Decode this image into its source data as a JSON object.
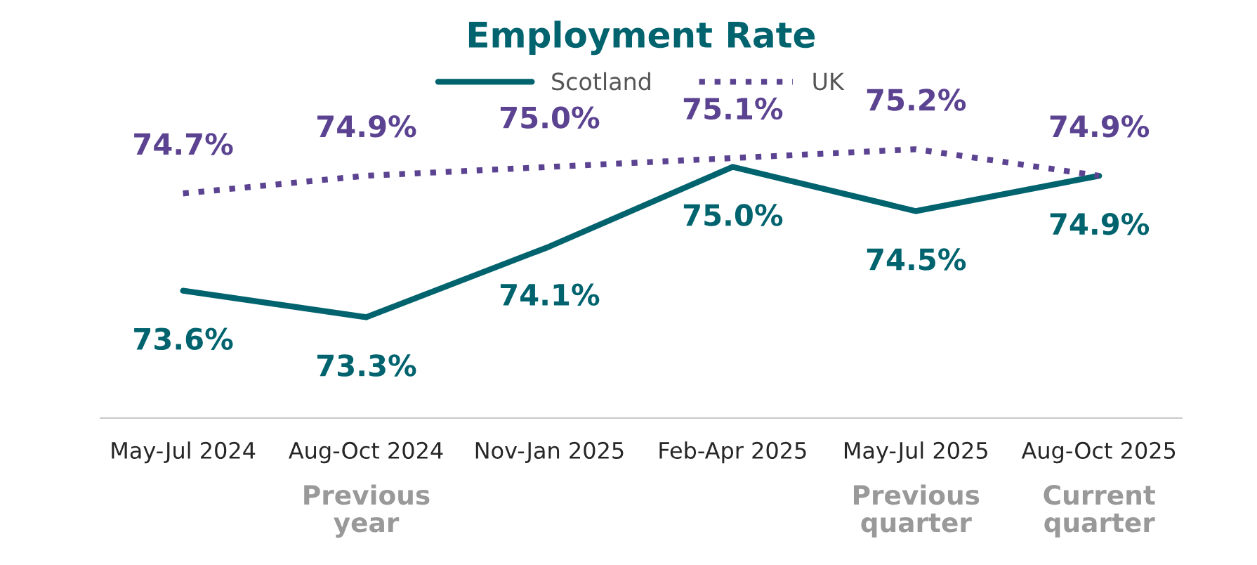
{
  "chart_data": {
    "type": "line",
    "title": "Employment Rate",
    "categories": [
      "May-Jul 2024",
      "Aug-Oct 2024\nPrevious\nyear",
      "Nov-Jan 2025",
      "Feb-Apr 2025",
      "May-Jul 2025\nPrevious\nquarter",
      "Aug-Oct 2025\nCurrent\nquarter"
    ],
    "series": [
      {
        "name": "Scotland",
        "color": "#00636e",
        "line_style": "solid",
        "values": [
          73.6,
          73.3,
          74.1,
          75.0,
          74.5,
          74.9
        ],
        "value_labels": [
          "73.6%",
          "73.3%",
          "74.1%",
          "75.0%",
          "74.5%",
          "74.9%"
        ]
      },
      {
        "name": "UK",
        "color": "#5b4391",
        "line_style": "dotted",
        "values": [
          74.7,
          74.9,
          75.0,
          75.1,
          75.2,
          74.9
        ],
        "value_labels": [
          "74.7%",
          "74.9%",
          "75.0%",
          "75.1%",
          "75.2%",
          "74.9%"
        ]
      }
    ],
    "legend": "top",
    "grid": false,
    "tick_labels": "x",
    "marker": "none"
  }
}
